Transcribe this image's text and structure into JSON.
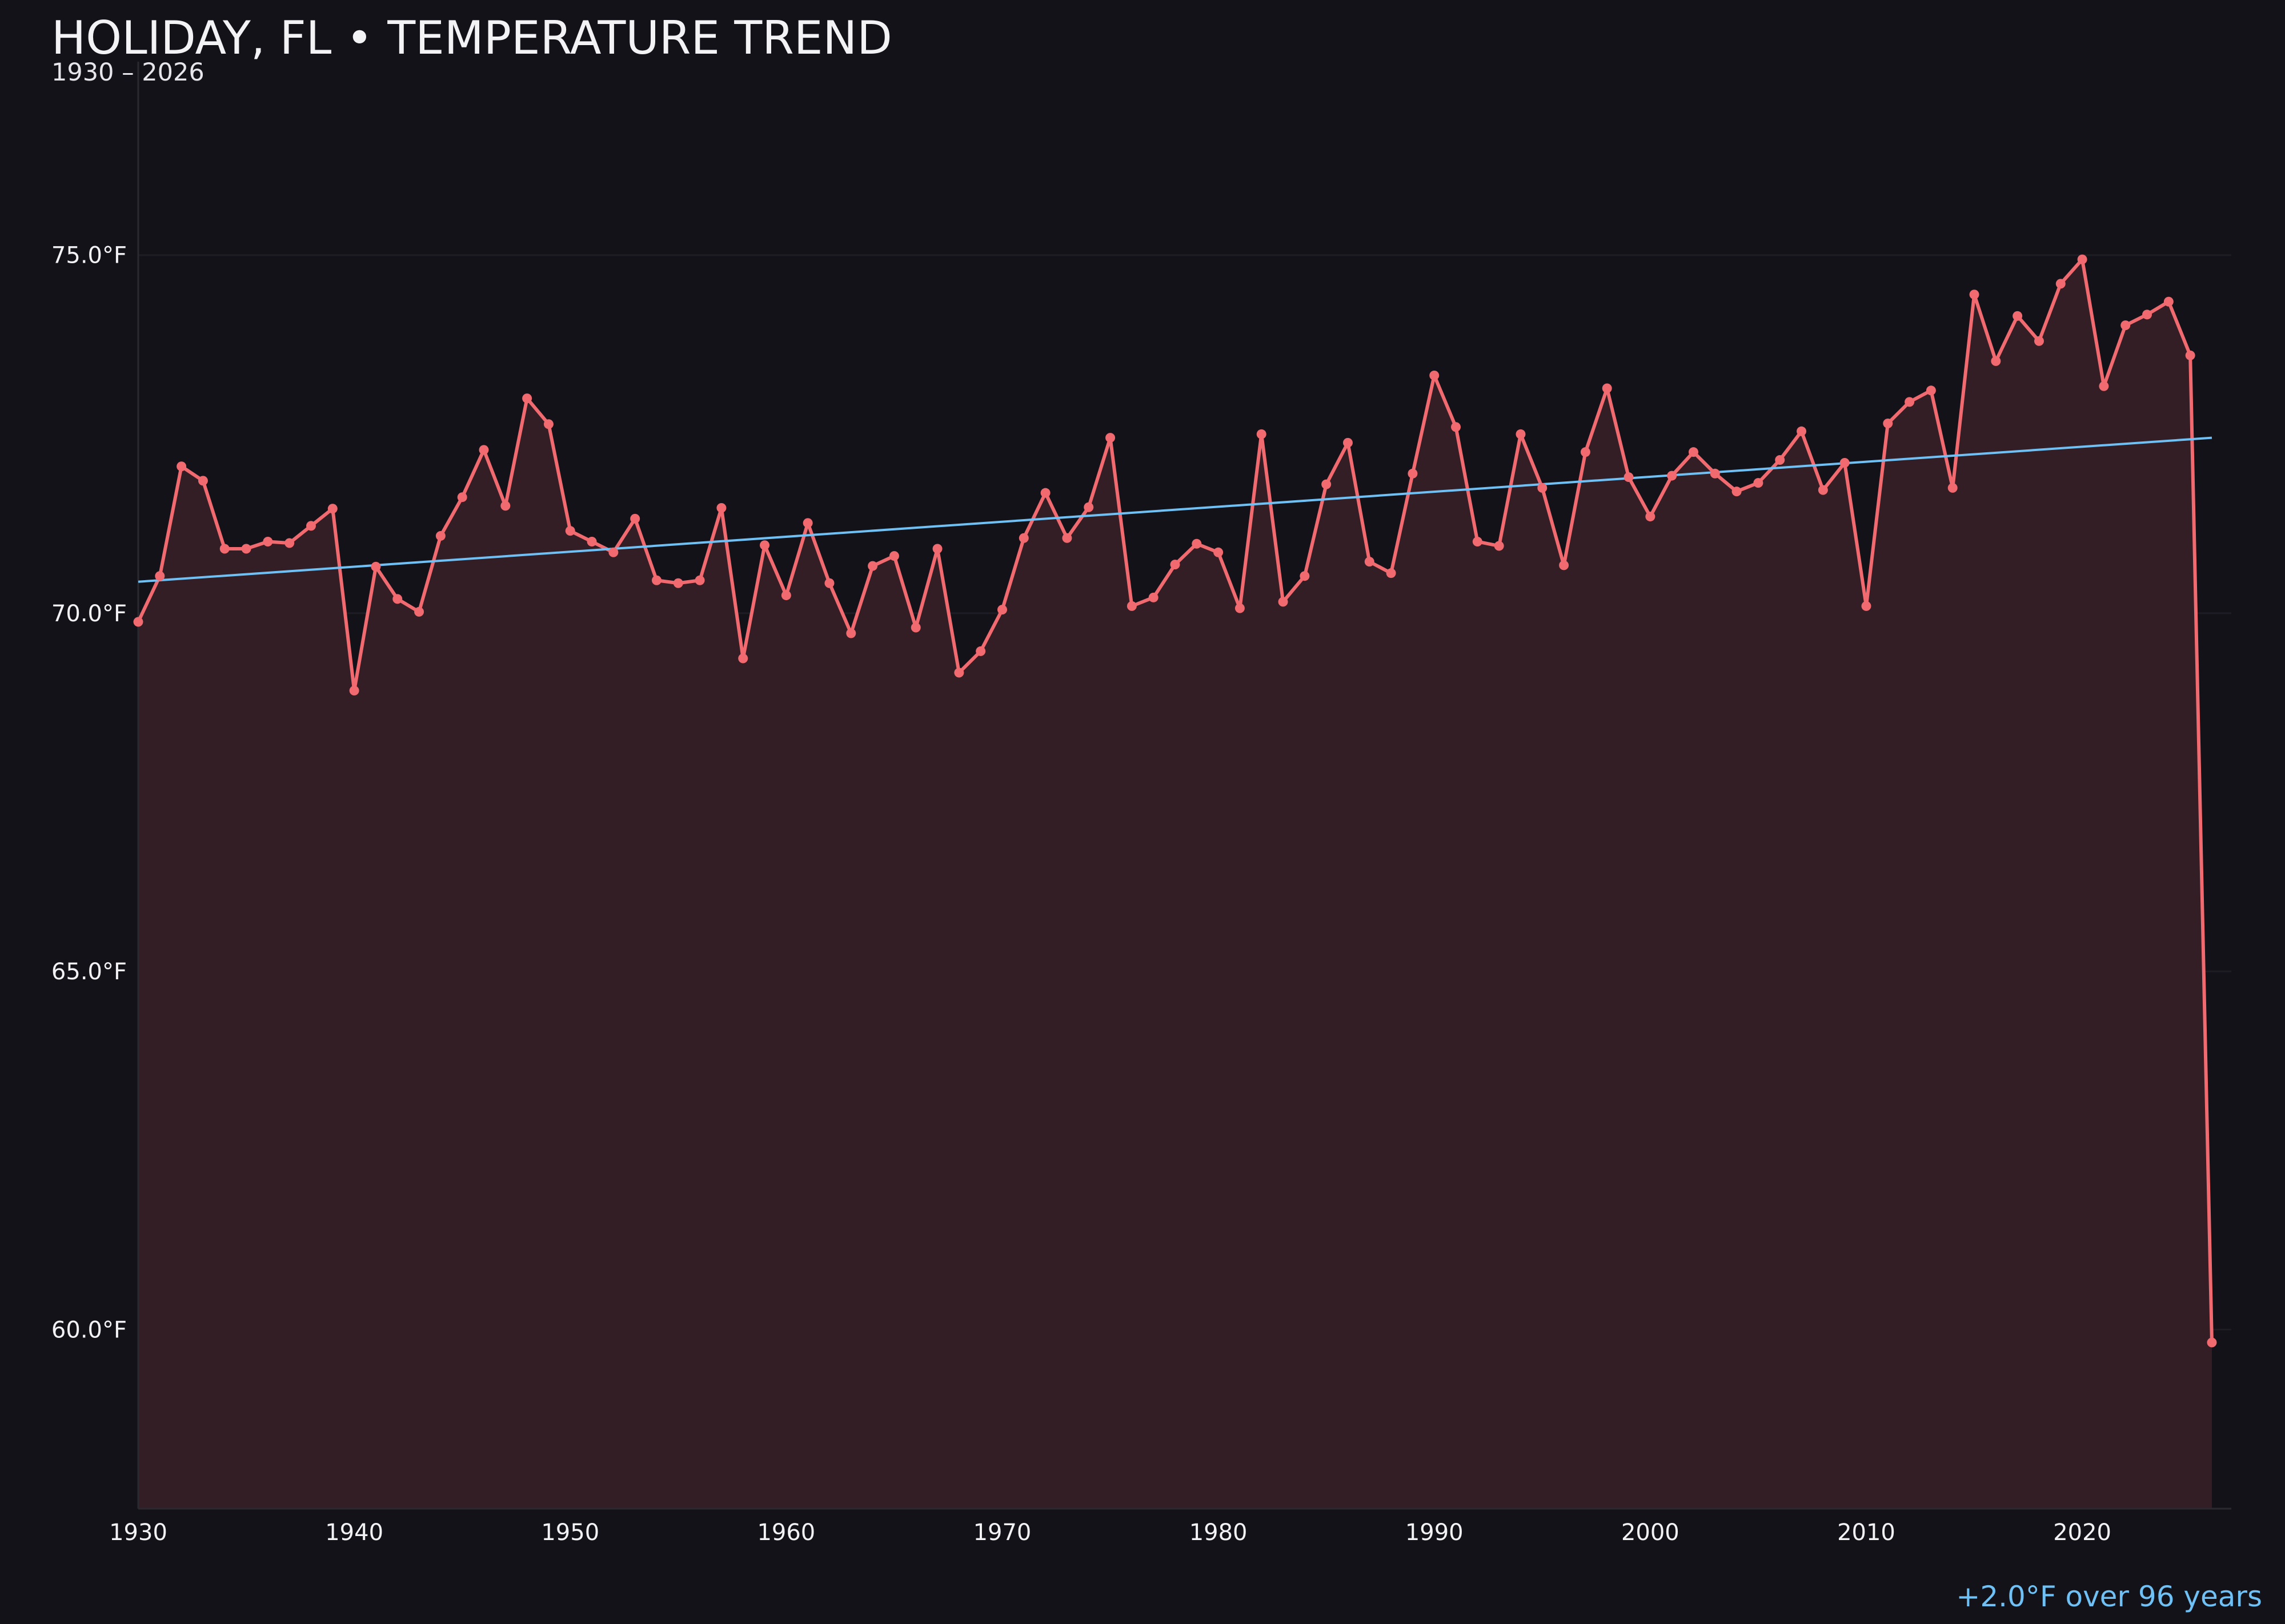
{
  "header": {
    "title": "HOLIDAY, FL • TEMPERATURE TREND",
    "subtitle": "1930 – 2026"
  },
  "footer": {
    "summary": "+2.0°F over 96 years"
  },
  "colors": {
    "background": "#131219",
    "line": "#f06a6f",
    "area": "#331e25",
    "trend": "#6ec0f5",
    "grid": "#1e1d24",
    "text": "#f3f3f5"
  },
  "chart_data": {
    "type": "line",
    "title": "HOLIDAY, FL • TEMPERATURE TREND",
    "subtitle": "1930 – 2026",
    "xlabel": "",
    "ylabel": "",
    "xlim": [
      1930,
      2026.9
    ],
    "ylim": [
      57.5,
      77.7
    ],
    "x_ticks": [
      1930,
      1940,
      1950,
      1960,
      1970,
      1980,
      1990,
      2000,
      2010,
      2020
    ],
    "y_ticks": [
      60.0,
      65.0,
      70.0,
      75.0
    ],
    "y_tick_labels": [
      "60.0°F",
      "65.0°F",
      "70.0°F",
      "75.0°F"
    ],
    "grid": "horizontal",
    "filled_area": true,
    "series": [
      {
        "x": [
          1930,
          1931,
          1932,
          1933,
          1934,
          1935,
          1936,
          1937,
          1938,
          1939,
          1940,
          1941,
          1942,
          1943,
          1944,
          1945,
          1946,
          1947,
          1948,
          1949,
          1950,
          1951,
          1952,
          1953,
          1954,
          1955,
          1956,
          1957,
          1958,
          1959,
          1960,
          1961,
          1962,
          1963,
          1964,
          1965,
          1966,
          1967,
          1968,
          1969,
          1970,
          1971,
          1972,
          1973,
          1974,
          1975,
          1976,
          1977,
          1978,
          1979,
          1980,
          1981,
          1982,
          1983,
          1984,
          1985,
          1986,
          1987,
          1988,
          1989,
          1990,
          1991,
          1992,
          1993,
          1994,
          1995,
          1996,
          1997,
          1998,
          1999,
          2000,
          2001,
          2002,
          2003,
          2004,
          2005,
          2006,
          2007,
          2008,
          2009,
          2010,
          2011,
          2012,
          2013,
          2014,
          2015,
          2016,
          2017,
          2018,
          2019,
          2020,
          2021,
          2022,
          2023,
          2024,
          2025,
          2026
        ],
        "y": [
          69.88,
          70.52,
          72.05,
          71.85,
          70.9,
          70.9,
          71.0,
          70.98,
          71.22,
          71.46,
          68.92,
          70.65,
          70.2,
          70.02,
          71.08,
          71.62,
          72.28,
          71.5,
          73.0,
          72.64,
          71.15,
          71.0,
          70.85,
          71.32,
          70.46,
          70.42,
          70.46,
          71.47,
          69.37,
          70.95,
          70.25,
          71.26,
          70.42,
          69.72,
          70.66,
          70.8,
          69.8,
          70.9,
          69.17,
          69.47,
          70.05,
          71.05,
          71.68,
          71.05,
          71.48,
          72.45,
          70.1,
          70.22,
          70.68,
          70.97,
          70.85,
          70.07,
          72.5,
          70.16,
          70.52,
          71.8,
          72.38,
          70.72,
          70.56,
          71.95,
          73.32,
          72.6,
          71.0,
          70.94,
          72.5,
          71.75,
          70.67,
          72.25,
          73.14,
          71.9,
          71.35,
          71.92,
          72.25,
          71.95,
          71.7,
          71.82,
          72.14,
          72.54,
          71.72,
          72.1,
          70.1,
          72.65,
          72.95,
          73.11,
          71.75,
          74.45,
          73.52,
          74.15,
          73.8,
          74.6,
          74.94,
          73.17,
          74.02,
          74.17,
          74.35,
          73.6,
          59.82
        ]
      },
      {
        "type": "trend",
        "x": [
          1930,
          2026
        ],
        "y": [
          70.44,
          72.45
        ]
      }
    ]
  }
}
